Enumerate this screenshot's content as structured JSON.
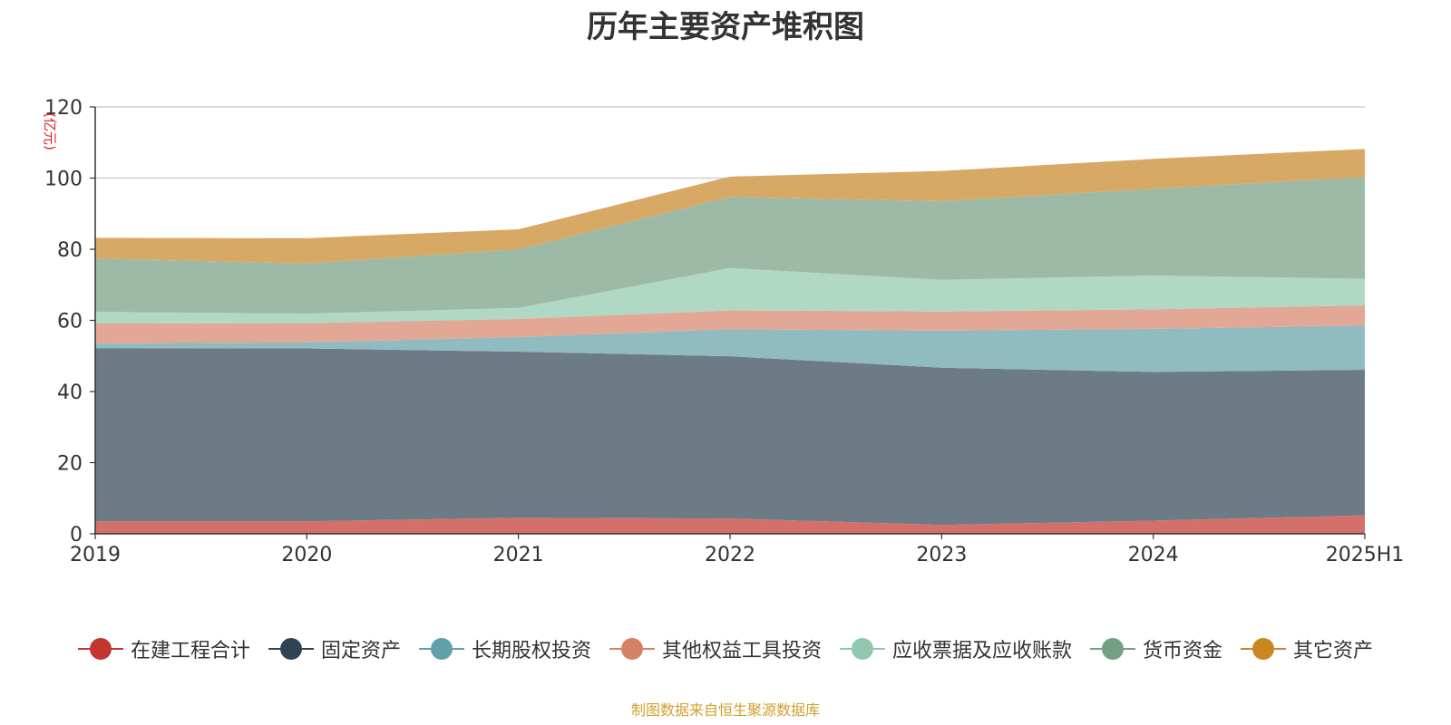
{
  "chart_data": {
    "type": "area",
    "title": "历年主要资产堆积图",
    "unit_label": "(亿元)",
    "categories": [
      "2019",
      "2020",
      "2021",
      "2022",
      "2023",
      "2024",
      "2025H1"
    ],
    "ylim": [
      0,
      120
    ],
    "yticks": [
      0,
      20,
      40,
      60,
      80,
      100,
      120
    ],
    "stacked": true,
    "grid": true,
    "legend_position": "bottom",
    "series": [
      {
        "name": "在建工程合计",
        "color": "#c23531",
        "fill": "#d4706a",
        "values": [
          3.5,
          3.5,
          4.5,
          4.3,
          2.5,
          3.7,
          5.2
        ]
      },
      {
        "name": "固定资产",
        "color": "#2f4554",
        "fill": "#6d7b86",
        "values": [
          48.7,
          48.6,
          46.7,
          45.6,
          44.2,
          41.8,
          40.9
        ]
      },
      {
        "name": "长期股权投资",
        "color": "#61a0a8",
        "fill": "#8fbbc1",
        "values": [
          1.3,
          1.7,
          4.1,
          7.6,
          10.4,
          12.1,
          12.4
        ]
      },
      {
        "name": "其他权益工具投资",
        "color": "#d48265",
        "fill": "#e2a795",
        "values": [
          5.6,
          5.4,
          5.1,
          5.3,
          5.4,
          5.5,
          5.7
        ]
      },
      {
        "name": "应收票据及应收账款",
        "color": "#91c7ae",
        "fill": "#b1d8c5",
        "values": [
          3.3,
          2.7,
          3.1,
          11.9,
          8.9,
          9.5,
          7.5
        ]
      },
      {
        "name": "货币资金",
        "color": "#749f83",
        "fill": "#9dbaa7",
        "values": [
          15.0,
          14.1,
          16.5,
          20.0,
          22.1,
          24.4,
          28.6
        ]
      },
      {
        "name": "其它资产",
        "color": "#ca8622",
        "fill": "#d8a964",
        "values": [
          5.8,
          7.1,
          5.6,
          5.7,
          8.5,
          8.4,
          7.9
        ]
      }
    ]
  },
  "source_note": "制图数据来自恒生聚源数据库"
}
